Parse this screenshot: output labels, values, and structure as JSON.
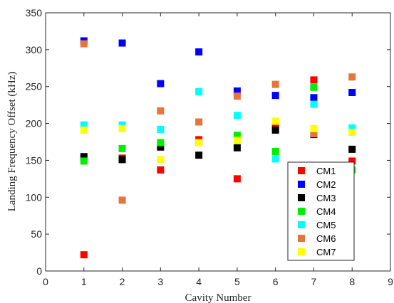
{
  "chart_data": {
    "type": "scatter",
    "xlabel": "Cavity Number",
    "ylabel": "Landing Frequency Offset (kHz)",
    "xlim": [
      0,
      9
    ],
    "ylim": [
      0,
      350
    ],
    "x_ticks": [
      0,
      1,
      2,
      3,
      4,
      5,
      6,
      7,
      8,
      9
    ],
    "y_ticks": [
      0,
      50,
      100,
      150,
      200,
      250,
      300,
      350
    ],
    "grid": false,
    "legend_position": "bottom-right",
    "marker": "square",
    "x": [
      1,
      2,
      3,
      4,
      5,
      6,
      7,
      8
    ],
    "series": [
      {
        "name": "CM1",
        "color": "#ff0000",
        "values": [
          22,
          153,
          137,
          178,
          125,
          195,
          259,
          149
        ]
      },
      {
        "name": "CM2",
        "color": "#0000ff",
        "values": [
          312,
          309,
          254,
          297,
          244,
          238,
          235,
          242
        ]
      },
      {
        "name": "CM3",
        "color": "#000000",
        "values": [
          155,
          151,
          168,
          157,
          167,
          191,
          185,
          165
        ]
      },
      {
        "name": "CM4",
        "color": "#00ee00",
        "values": [
          149,
          166,
          174,
          174,
          184,
          162,
          249,
          137
        ]
      },
      {
        "name": "CM5",
        "color": "#00ffff",
        "values": [
          198,
          198,
          192,
          243,
          211,
          152,
          226,
          194
        ]
      },
      {
        "name": "CM6",
        "color": "#e6743d",
        "values": [
          308,
          96,
          217,
          202,
          237,
          253,
          186,
          263
        ]
      },
      {
        "name": "CM7",
        "color": "#ffff00",
        "values": [
          191,
          193,
          151,
          174,
          177,
          203,
          193,
          188
        ]
      }
    ]
  }
}
